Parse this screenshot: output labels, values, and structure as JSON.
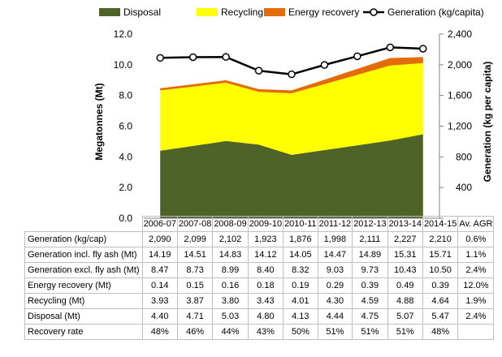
{
  "chart_data": {
    "type": "area",
    "categories": [
      "2006-07",
      "2007-08",
      "2008-09",
      "2009-10",
      "2010-11",
      "2011-12",
      "2012-13",
      "2013-14",
      "2014-15"
    ],
    "stack_order": [
      "Disposal",
      "Recycling",
      "Energy recovery"
    ],
    "series": [
      {
        "name": "Disposal",
        "type": "area",
        "axis": "left",
        "color": "#4F6228",
        "values": [
          4.4,
          4.71,
          5.03,
          4.8,
          4.13,
          4.44,
          4.75,
          5.07,
          5.47
        ]
      },
      {
        "name": "Recycling",
        "type": "area",
        "axis": "left",
        "color": "#FFFF00",
        "values": [
          3.93,
          3.87,
          3.8,
          3.43,
          4.01,
          4.3,
          4.59,
          4.88,
          4.64
        ]
      },
      {
        "name": "Energy recovery",
        "type": "area",
        "axis": "left",
        "color": "#E36C09",
        "values": [
          0.14,
          0.15,
          0.16,
          0.18,
          0.19,
          0.29,
          0.39,
          0.49,
          0.39
        ]
      },
      {
        "name": "Generation (kg/capita)",
        "type": "line",
        "axis": "right",
        "color": "#000000",
        "values": [
          2090,
          2099,
          2102,
          1923,
          1876,
          1998,
          2111,
          2227,
          2210
        ]
      }
    ],
    "ylabel_left": "Megatonnes (Mt)",
    "ylabel_right": "Generation (kg per capita)",
    "ylim_left": [
      0,
      12
    ],
    "ylim_right": [
      0,
      2400
    ],
    "yticks_left": [
      "0.0",
      "2.0",
      "4.0",
      "6.0",
      "8.0",
      "10.0",
      "12.0"
    ],
    "yticks_right": [
      "",
      "400",
      "800",
      "1,200",
      "1,600",
      "2,000",
      "2,400"
    ],
    "grid": false,
    "legend_position": "top"
  },
  "table": {
    "headers": [
      "2006-07",
      "2007-08",
      "2008-09",
      "2009-10",
      "2010-11",
      "2011-12",
      "2012-13",
      "2013-14",
      "2014-15",
      "Av. AGR"
    ],
    "rows": [
      {
        "label": "Generation (kg/cap)",
        "cells": [
          "2,090",
          "2,099",
          "2,102",
          "1,923",
          "1,876",
          "1,998",
          "2,111",
          "2,227",
          "2,210",
          "0.6%"
        ]
      },
      {
        "label": "Generation incl. fly ash (Mt)",
        "cells": [
          "14.19",
          "14.51",
          "14.83",
          "14.12",
          "14.05",
          "14.47",
          "14.89",
          "15.31",
          "15.71",
          "1.1%"
        ]
      },
      {
        "label": "Generation excl. fly ash (Mt)",
        "cells": [
          "8.47",
          "8.73",
          "8.99",
          "8.40",
          "8.32",
          "9.03",
          "9.73",
          "10.43",
          "10.50",
          "2.4%"
        ]
      },
      {
        "label": "Energy recovery (Mt)",
        "cells": [
          "0.14",
          "0.15",
          "0.16",
          "0.18",
          "0.19",
          "0.29",
          "0.39",
          "0.49",
          "0.39",
          "12.0%"
        ]
      },
      {
        "label": "Recycling (Mt)",
        "cells": [
          "3.93",
          "3.87",
          "3.80",
          "3.43",
          "4.01",
          "4.30",
          "4.59",
          "4.88",
          "4.64",
          "1.9%"
        ]
      },
      {
        "label": "Disposal (Mt)",
        "cells": [
          "4.40",
          "4.71",
          "5.03",
          "4.80",
          "4.13",
          "4.44",
          "4.75",
          "5.07",
          "5.47",
          "2.4%"
        ]
      },
      {
        "label": "Recovery rate",
        "cells": [
          "48%",
          "46%",
          "44%",
          "43%",
          "50%",
          "51%",
          "51%",
          "51%",
          "48%",
          ""
        ]
      }
    ]
  }
}
